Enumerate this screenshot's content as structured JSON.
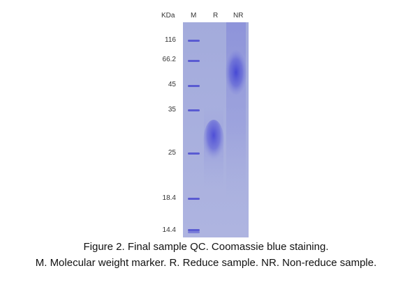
{
  "header": {
    "unit": "KDa",
    "lanes": [
      "M",
      "R",
      "NR"
    ]
  },
  "markers": [
    "116",
    "66.2",
    "45",
    "35",
    "25",
    "18.4",
    "14.4"
  ],
  "caption": {
    "line1": "Figure 2. Final sample QC. Coomassie blue staining.",
    "line2": "M. Molecular weight marker. R. Reduce sample. NR. Non-reduce sample."
  },
  "colors": {
    "gel_background": "#a9b0de",
    "band": "#4e4fd1"
  }
}
